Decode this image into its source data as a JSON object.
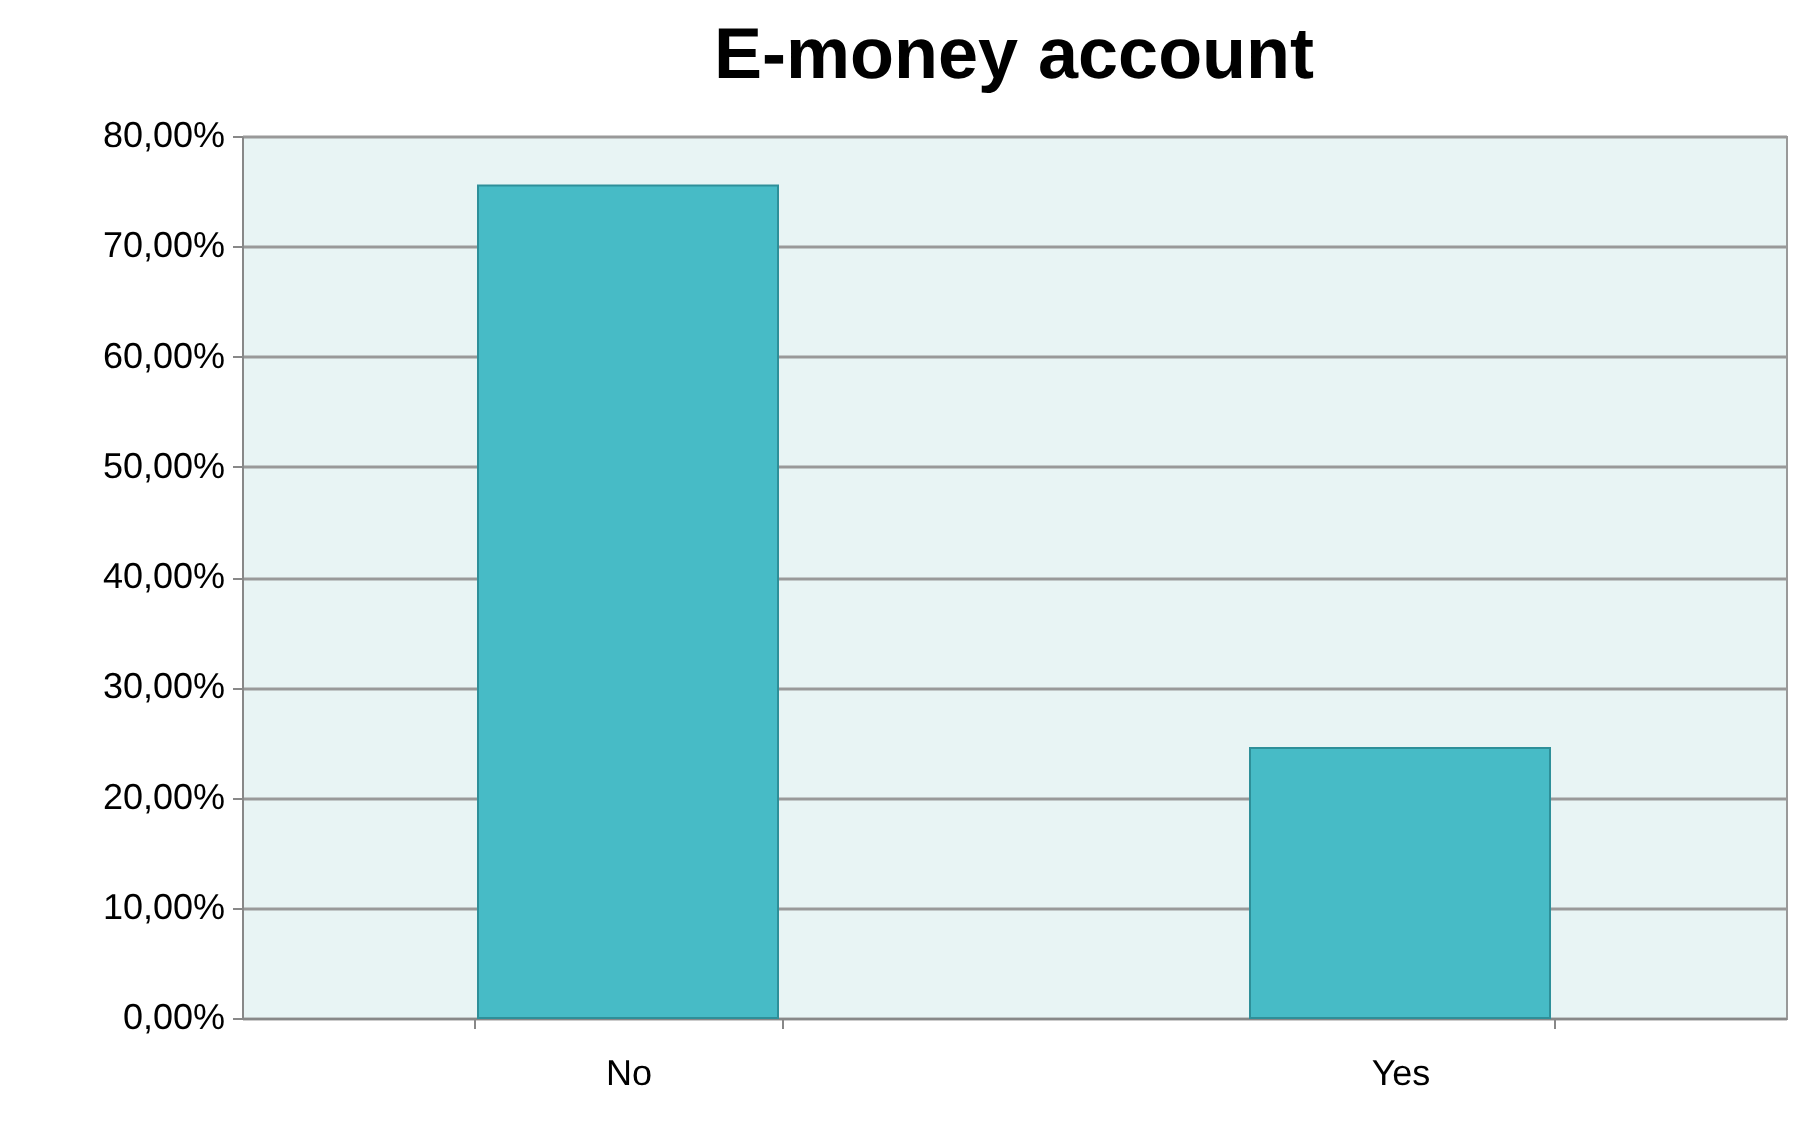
{
  "chart_data": {
    "type": "bar",
    "title": "E-money account",
    "categories": [
      "No",
      "Yes"
    ],
    "values": [
      75.5,
      24.5
    ],
    "color": "#47bbc6",
    "ylim": [
      0,
      80
    ],
    "yticks": [
      {
        "value": 0,
        "label": "0,00%"
      },
      {
        "value": 10,
        "label": "10,00%"
      },
      {
        "value": 20,
        "label": "20,00%"
      },
      {
        "value": 30,
        "label": "30,00%"
      },
      {
        "value": 40,
        "label": "40,00%"
      },
      {
        "value": 50,
        "label": "50,00%"
      },
      {
        "value": 60,
        "label": "60,00%"
      },
      {
        "value": 70,
        "label": "70,00%"
      },
      {
        "value": 80,
        "label": "80,00%"
      }
    ],
    "grid": "y"
  }
}
